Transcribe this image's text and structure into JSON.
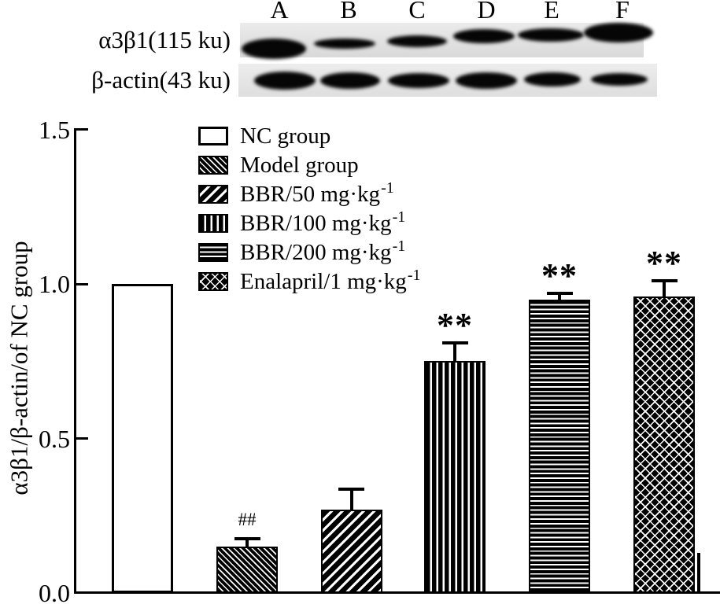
{
  "blot": {
    "lane_labels": [
      "A",
      "B",
      "C",
      "D",
      "E",
      "F"
    ],
    "row_labels": [
      "α3β1(115 ku)",
      "β-actin(43 ku)"
    ]
  },
  "chart_data": {
    "type": "bar",
    "title": "",
    "xlabel": "",
    "ylabel": "α3β1/β-actin/of NC group",
    "ylim": [
      0,
      1.5
    ],
    "ytick_values": [
      0,
      0.5,
      1.0,
      1.5
    ],
    "ytick_labels": [
      "0.0",
      "0.5",
      "1.0",
      "1.5"
    ],
    "grid": false,
    "legend_position": "upper-left-inside",
    "categories": [
      "NC group",
      "Model group",
      "BBR/50 mg·kg⁻¹",
      "BBR/100 mg·kg⁻¹",
      "BBR/200 mg·kg⁻¹",
      "Enalapril/1 mg·kg⁻¹"
    ],
    "values": [
      1.0,
      0.15,
      0.27,
      0.75,
      0.95,
      0.96
    ],
    "errors_upper": [
      0,
      0.025,
      0.065,
      0.06,
      0.02,
      0.05
    ],
    "significance": [
      "",
      "##",
      "",
      "**",
      "**",
      "**"
    ],
    "legend": [
      {
        "label": "NC group",
        "sup": "",
        "pattern": "none"
      },
      {
        "label": "Model group",
        "sup": "",
        "pattern": "diag-backslash"
      },
      {
        "label": "BBR/50 mg·kg",
        "sup": "-1",
        "pattern": "diag-slash"
      },
      {
        "label": "BBR/100 mg·kg",
        "sup": "-1",
        "pattern": "vertical-lines"
      },
      {
        "label": "BBR/200 mg·kg",
        "sup": "-1",
        "pattern": "horizontal-lines"
      },
      {
        "label": "Enalapril/1 mg·kg",
        "sup": "-1",
        "pattern": "diamond-crosshatch"
      }
    ],
    "colors": {
      "foreground": "#000000",
      "background": "#ffffff"
    }
  }
}
